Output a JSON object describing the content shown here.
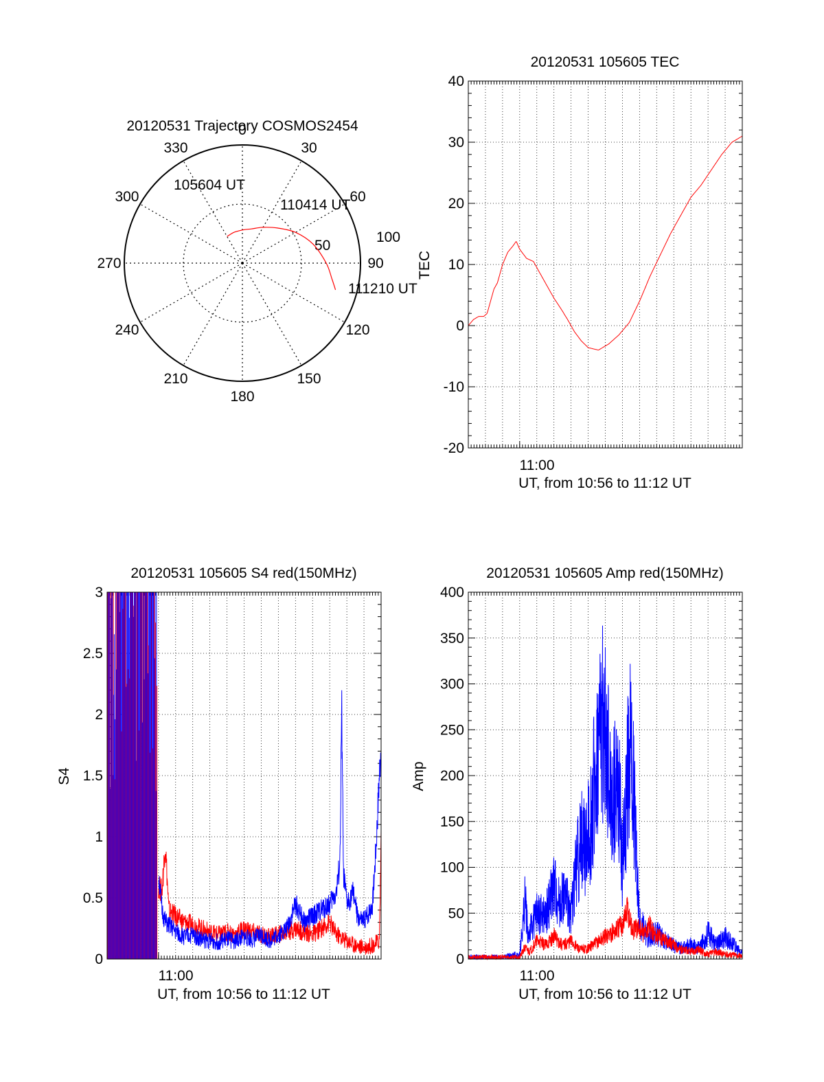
{
  "chart_data": [
    {
      "type": "polar",
      "title": "20120531 Trajectory COSMOS2454",
      "angle_labels": [
        "0",
        "30",
        "60",
        "90",
        "120",
        "150",
        "180",
        "210",
        "240",
        "270",
        "300",
        "330"
      ],
      "radius_labels": [
        "50",
        "100"
      ],
      "start_label": "105604 UT",
      "mid_label": "110414 UT",
      "end_label": "111210 UT",
      "trajectory": [
        {
          "azimuth": 330,
          "radius": 26
        },
        {
          "azimuth": 345,
          "radius": 27
        },
        {
          "azimuth": 0,
          "radius": 28
        },
        {
          "azimuth": 15,
          "radius": 30
        },
        {
          "azimuth": 30,
          "radius": 35
        },
        {
          "azimuth": 45,
          "radius": 42
        },
        {
          "azimuth": 60,
          "radius": 52
        },
        {
          "azimuth": 75,
          "radius": 62
        },
        {
          "azimuth": 90,
          "radius": 71
        },
        {
          "azimuth": 100,
          "radius": 77
        },
        {
          "azimuth": 106,
          "radius": 82
        }
      ]
    },
    {
      "type": "line",
      "title": "20120531 105605 TEC",
      "xlabel": "UT, from 10:56 to 11:12 UT",
      "ylabel": "TEC",
      "xlim": [
        0,
        16
      ],
      "ylim": [
        -20,
        40
      ],
      "xtick": {
        "value": 3,
        "label": "11:00"
      },
      "yticks": [
        "-20",
        "-10",
        "0",
        "10",
        "20",
        "30",
        "40"
      ],
      "series": [
        {
          "color": "#ff0000",
          "x": [
            0,
            0.3,
            0.6,
            0.9,
            1.1,
            1.3,
            1.5,
            1.7,
            2.0,
            2.3,
            2.6,
            2.8,
            3.0,
            3.4,
            3.8,
            4.2,
            4.6,
            5.0,
            5.4,
            5.8,
            6.2,
            6.6,
            7.0,
            7.6,
            8.2,
            8.8,
            9.4,
            10.0,
            10.6,
            11.2,
            11.8,
            12.4,
            13.0,
            13.6,
            14.2,
            14.8,
            15.4,
            16.0
          ],
          "y": [
            0,
            1,
            1.5,
            1.5,
            2,
            4,
            6,
            7,
            10,
            12,
            13,
            13.8,
            12.5,
            11,
            10.5,
            8.5,
            6.5,
            4.5,
            2.8,
            1,
            -1,
            -2.5,
            -3.6,
            -4,
            -3,
            -1.5,
            0.5,
            4,
            8,
            11.5,
            15,
            18,
            21,
            23,
            25.5,
            28,
            30,
            31
          ]
        }
      ]
    },
    {
      "type": "line",
      "title": "20120531 105605 S4 red(150MHz)",
      "xlabel": "UT, from 10:56 to 11:12 UT",
      "ylabel": "S4",
      "xlim": [
        0,
        16
      ],
      "ylim": [
        0,
        3
      ],
      "xtick": {
        "value": 3,
        "label": "11:00"
      },
      "yticks": [
        "0",
        "0.5",
        "1",
        "1.5",
        "2",
        "2.5",
        "3"
      ],
      "series": [
        {
          "color": "#ff0000",
          "x": [
            3.0,
            3.2,
            3.4,
            3.6,
            4.0,
            4.5,
            5.0,
            5.5,
            6.0,
            6.5,
            7.0,
            7.5,
            8.0,
            8.5,
            9.0,
            9.5,
            10.0,
            10.5,
            11.0,
            11.5,
            12.0,
            12.5,
            13.0,
            13.3,
            13.6,
            14.0,
            14.4,
            14.8,
            15.2,
            15.6,
            15.9,
            16.0
          ],
          "y": [
            0.6,
            0.55,
            0.95,
            0.4,
            0.35,
            0.3,
            0.28,
            0.25,
            0.22,
            0.2,
            0.22,
            0.2,
            0.25,
            0.22,
            0.2,
            0.18,
            0.2,
            0.22,
            0.25,
            0.22,
            0.2,
            0.25,
            0.3,
            0.22,
            0.18,
            0.15,
            0.12,
            0.1,
            0.1,
            0.12,
            0.15,
            1.0
          ]
        },
        {
          "color": "#0000ff",
          "x": [
            3.0,
            3.2,
            3.4,
            3.8,
            4.2,
            4.6,
            5.0,
            5.5,
            6.0,
            6.5,
            7.0,
            7.5,
            8.0,
            8.5,
            9.0,
            9.5,
            10.0,
            10.5,
            11.0,
            11.5,
            12.0,
            12.5,
            13.0,
            13.4,
            13.6,
            13.7,
            13.8,
            14.0,
            14.4,
            14.6,
            14.9,
            15.2,
            15.5,
            15.7,
            15.85,
            16.0
          ],
          "y": [
            0.7,
            0.4,
            0.3,
            0.25,
            0.2,
            0.18,
            0.2,
            0.16,
            0.15,
            0.14,
            0.16,
            0.15,
            0.18,
            0.16,
            0.2,
            0.15,
            0.2,
            0.25,
            0.45,
            0.3,
            0.35,
            0.4,
            0.45,
            0.55,
            0.8,
            2.05,
            0.7,
            0.45,
            0.55,
            0.35,
            0.3,
            0.35,
            0.45,
            0.9,
            1.35,
            1.8
          ]
        }
      ]
    },
    {
      "type": "line",
      "title": "20120531 105605 Amp red(150MHz)",
      "xlabel": "UT, from 10:56 to 11:12 UT",
      "ylabel": "Amp",
      "xlim": [
        0,
        16
      ],
      "ylim": [
        0,
        400
      ],
      "xtick": {
        "value": 3,
        "label": "11:00"
      },
      "yticks": [
        "0",
        "50",
        "100",
        "150",
        "200",
        "250",
        "300",
        "350",
        "400"
      ],
      "series": [
        {
          "color": "#0000ff",
          "x": [
            0,
            1,
            2,
            3.0,
            3.2,
            3.3,
            3.5,
            4.0,
            4.5,
            5.0,
            5.3,
            5.6,
            6.0,
            6.3,
            6.6,
            6.9,
            7.2,
            7.5,
            7.8,
            8.1,
            8.4,
            8.6,
            8.8,
            9.0,
            9.2,
            9.4,
            9.6,
            9.8,
            10.0,
            10.5,
            11.0,
            11.5,
            12.0,
            12.5,
            13.0,
            13.5,
            14.0,
            14.5,
            15.0,
            15.5,
            16.0
          ],
          "y": [
            2,
            2,
            2,
            5,
            40,
            70,
            25,
            50,
            45,
            80,
            60,
            70,
            50,
            100,
            130,
            120,
            160,
            210,
            260,
            220,
            160,
            190,
            180,
            100,
            170,
            230,
            200,
            120,
            40,
            25,
            28,
            20,
            15,
            12,
            15,
            12,
            28,
            15,
            25,
            15,
            5
          ]
        },
        {
          "color": "#ff0000",
          "x": [
            0,
            3.0,
            3.3,
            3.6,
            4.0,
            4.5,
            5.0,
            5.5,
            6.0,
            6.5,
            7.0,
            7.5,
            8.0,
            8.5,
            9.0,
            9.3,
            9.6,
            9.9,
            10.2,
            10.6,
            11.0,
            11.5,
            12.0,
            12.5,
            13.0,
            13.5,
            14.0,
            14.5,
            15.0,
            15.5,
            16.0
          ],
          "y": [
            2,
            2,
            12,
            8,
            20,
            15,
            25,
            15,
            20,
            10,
            12,
            18,
            25,
            30,
            38,
            55,
            30,
            35,
            28,
            35,
            25,
            22,
            15,
            10,
            8,
            10,
            5,
            8,
            5,
            5,
            3
          ]
        }
      ]
    }
  ]
}
